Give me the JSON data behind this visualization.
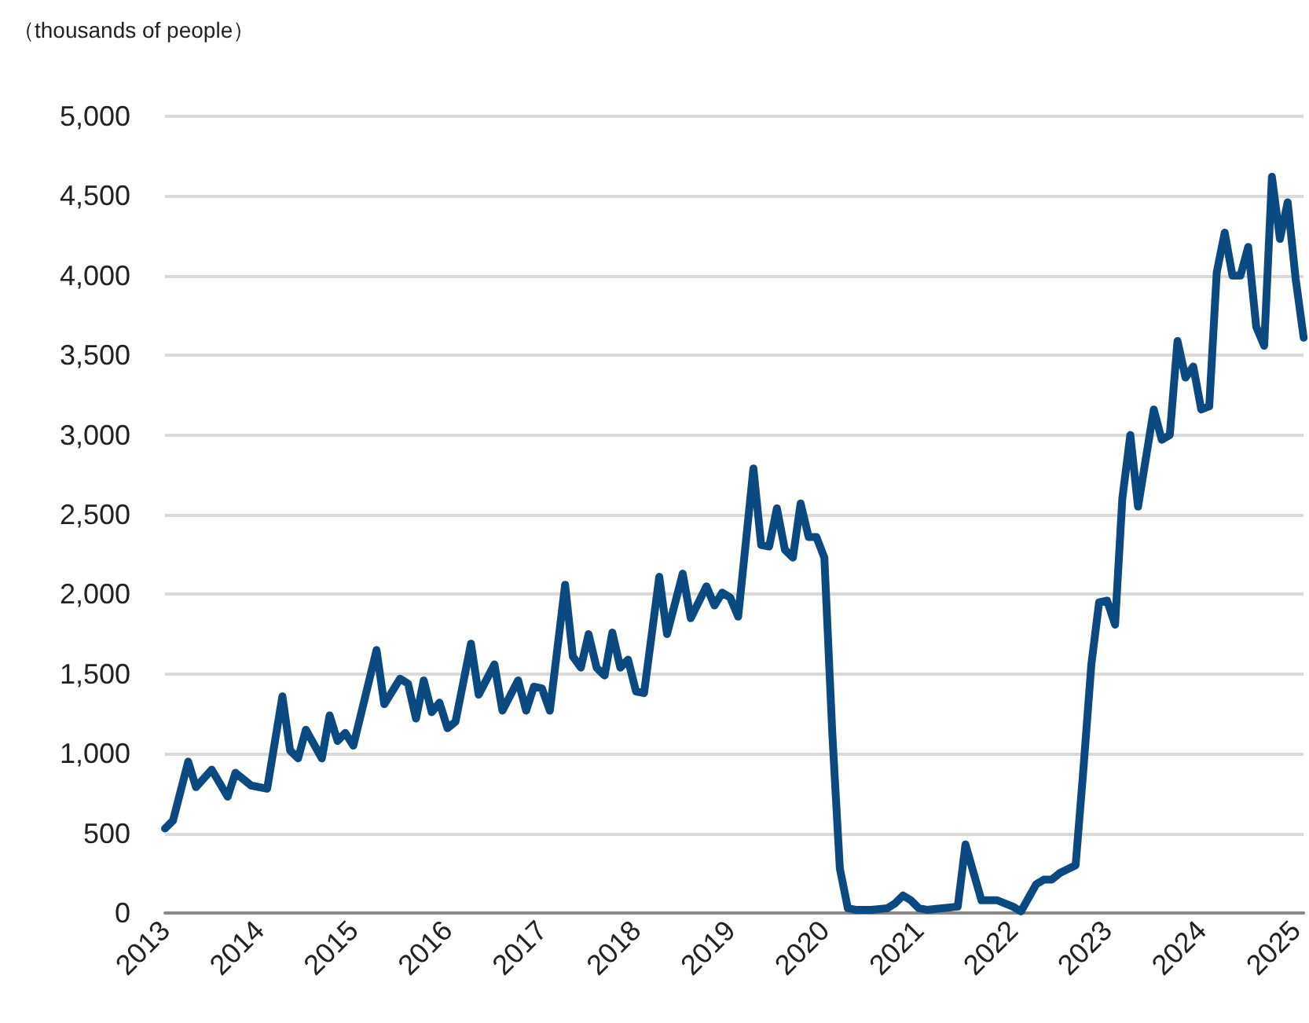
{
  "chart_data": {
    "type": "line",
    "ylabel": "（thousands of people）",
    "x": [
      "2013-01",
      "2013-02",
      "2013-04",
      "2013-05",
      "2013-07",
      "2013-09",
      "2013-10",
      "2013-12",
      "2014-02",
      "2014-04",
      "2014-05",
      "2014-06",
      "2014-07",
      "2014-09",
      "2014-10",
      "2014-11",
      "2014-12",
      "2015-01",
      "2015-04",
      "2015-05",
      "2015-07",
      "2015-08",
      "2015-09",
      "2015-10",
      "2015-11",
      "2015-12",
      "2016-01",
      "2016-02",
      "2016-04",
      "2016-05",
      "2016-07",
      "2016-08",
      "2016-10",
      "2016-11",
      "2016-12",
      "2017-01",
      "2017-02",
      "2017-04",
      "2017-05",
      "2017-06",
      "2017-07",
      "2017-08",
      "2017-09",
      "2017-10",
      "2017-11",
      "2017-12",
      "2018-01",
      "2018-02",
      "2018-04",
      "2018-05",
      "2018-07",
      "2018-08",
      "2018-10",
      "2018-11",
      "2018-12",
      "2019-01",
      "2019-02",
      "2019-04",
      "2019-05",
      "2019-06",
      "2019-07",
      "2019-08",
      "2019-09",
      "2019-10",
      "2019-11",
      "2019-12",
      "2020-01",
      "2020-02",
      "2020-03",
      "2020-04",
      "2020-05",
      "2020-07",
      "2020-09",
      "2020-10",
      "2020-11",
      "2020-12",
      "2021-01",
      "2021-02",
      "2021-04",
      "2021-06",
      "2021-07",
      "2021-09",
      "2021-11",
      "2022-01",
      "2022-02",
      "2022-04",
      "2022-05",
      "2022-06",
      "2022-07",
      "2022-09",
      "2022-10",
      "2022-11",
      "2022-12",
      "2023-01",
      "2023-02",
      "2023-03",
      "2023-04",
      "2023-05",
      "2023-07",
      "2023-08",
      "2023-09",
      "2023-10",
      "2023-11",
      "2023-12",
      "2024-01",
      "2024-02",
      "2024-03",
      "2024-04",
      "2024-05",
      "2024-06",
      "2024-07",
      "2024-08",
      "2024-09",
      "2024-10",
      "2024-11",
      "2024-12",
      "2025-01",
      "2025-02"
    ],
    "series": [
      {
        "color": "#0b4a80",
        "values": [
          530,
          580,
          950,
          790,
          900,
          730,
          880,
          800,
          780,
          1360,
          1020,
          970,
          1150,
          970,
          1240,
          1080,
          1130,
          1050,
          1650,
          1310,
          1470,
          1440,
          1220,
          1460,
          1260,
          1320,
          1160,
          1200,
          1690,
          1370,
          1560,
          1270,
          1460,
          1270,
          1420,
          1410,
          1270,
          2060,
          1610,
          1540,
          1750,
          1540,
          1490,
          1760,
          1540,
          1590,
          1390,
          1380,
          2110,
          1750,
          2130,
          1850,
          2050,
          1930,
          2010,
          1980,
          1860,
          2790,
          2310,
          2300,
          2540,
          2280,
          2230,
          2570,
          2360,
          2360,
          2230,
          1120,
          280,
          30,
          20,
          20,
          30,
          60,
          110,
          80,
          30,
          20,
          30,
          40,
          430,
          80,
          80,
          40,
          10,
          180,
          210,
          210,
          250,
          300,
          900,
          1560,
          1950,
          1960,
          1810,
          2600,
          3000,
          2550,
          3160,
          2970,
          3000,
          3590,
          3360,
          3430,
          3160,
          3180,
          4020,
          4270,
          4000,
          4000,
          4180,
          3680,
          3560,
          4620,
          4230,
          4460,
          3980,
          3610
        ]
      }
    ],
    "xlim": [
      "2013-01",
      "2025-02"
    ],
    "xticks": [
      "2013",
      "2014",
      "2015",
      "2016",
      "2017",
      "2018",
      "2019",
      "2020",
      "2021",
      "2022",
      "2023",
      "2024",
      "2025"
    ],
    "ylim": [
      0,
      5000
    ],
    "yticks": [
      0,
      500,
      {
        "value": 1000,
        "label": "1,000"
      },
      {
        "value": 1500,
        "label": "1,500"
      },
      {
        "value": 2000,
        "label": "2,000"
      },
      {
        "value": 2500,
        "label": "2,500"
      },
      {
        "value": 3000,
        "label": "3,000"
      },
      {
        "value": 3500,
        "label": "3,500"
      },
      {
        "value": 4000,
        "label": "4,000"
      },
      {
        "value": 4500,
        "label": "4,500"
      },
      {
        "value": 5000,
        "label": "5,000"
      }
    ],
    "grid": "y",
    "marker": "none",
    "line_style": "solid"
  }
}
